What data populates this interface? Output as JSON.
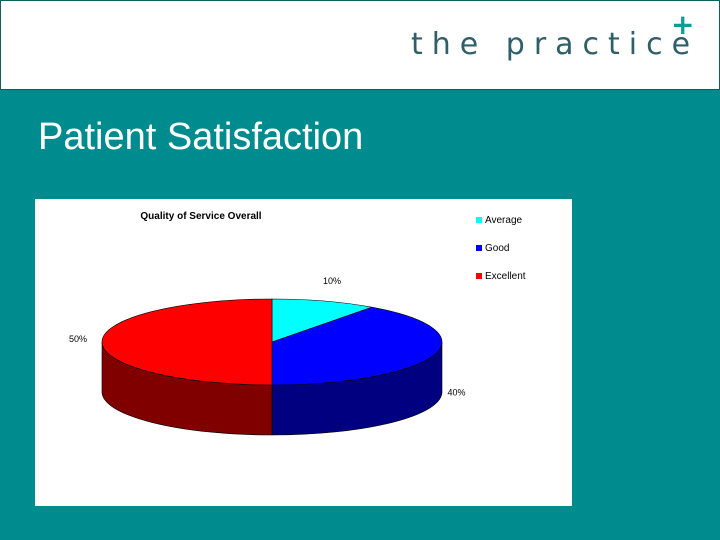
{
  "header": {
    "logo_text": "the practice",
    "logo_mark": "+"
  },
  "slide": {
    "title": "Patient Satisfaction"
  },
  "colors": {
    "background": "#008b8e",
    "average": "#00ffff",
    "good": "#0000ff",
    "excellent": "#ff0000"
  },
  "chart_data": {
    "type": "pie",
    "title": "Quality of Service Overall",
    "style": "3d",
    "legend_position": "top-right",
    "categories": [
      "Average",
      "Good",
      "Excellent"
    ],
    "values": [
      10,
      40,
      50
    ],
    "value_labels": [
      "10%",
      "40%",
      "50%"
    ],
    "colors": [
      "#00ffff",
      "#0000ff",
      "#ff0000"
    ]
  }
}
